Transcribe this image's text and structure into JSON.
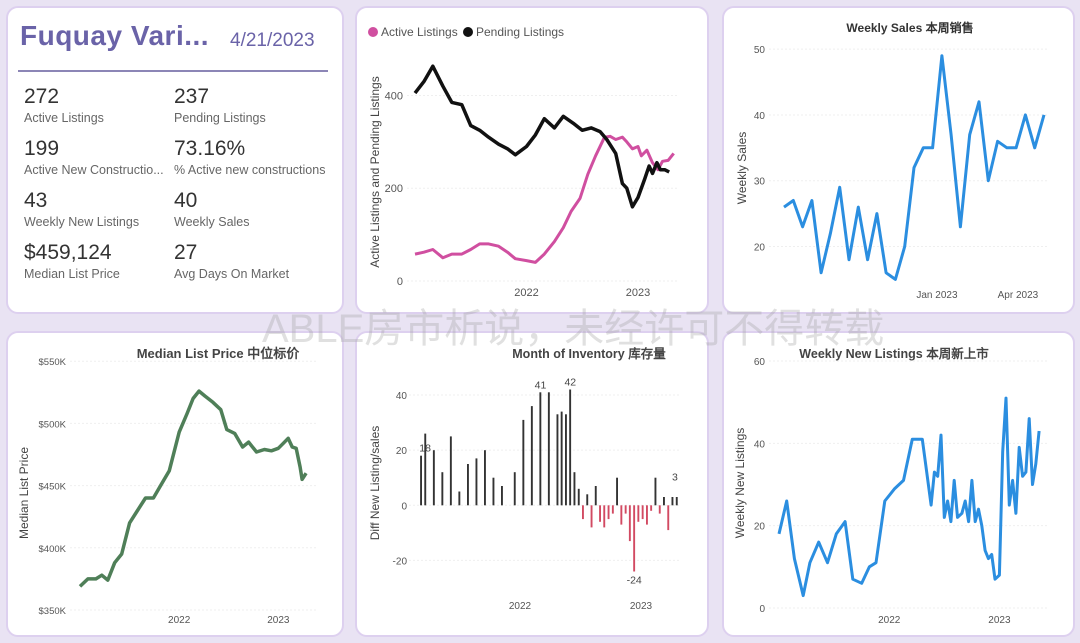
{
  "kpi": {
    "city": "Fuquay Vari...",
    "date": "4/21/2023",
    "items": [
      {
        "value": "272",
        "label": "Active Listings"
      },
      {
        "value": "237",
        "label": "Pending Listings"
      },
      {
        "value": "199",
        "label": "Active New Constructio..."
      },
      {
        "value": "73.16%",
        "label": "% Active new constructions"
      },
      {
        "value": "43",
        "label": "Weekly New Listings"
      },
      {
        "value": "40",
        "label": "Weekly Sales"
      },
      {
        "value": "$459,124",
        "label": "Median List Price"
      },
      {
        "value": "27",
        "label": "Avg Days On Market"
      }
    ]
  },
  "watermark": "ABLE房市析说，未经许可不得转载",
  "colors": {
    "active": "#d04fa0",
    "pending": "#111111",
    "blue": "#2b8ee0",
    "green": "#4f7f58",
    "bar_pos": "#333333",
    "bar_neg": "#d24a62"
  },
  "chart_data": [
    {
      "type": "line",
      "title": "",
      "ylabel": "Active Listings and Pending Listings",
      "xlabel": "",
      "legend": "top-left",
      "x_ticks": [
        "2022",
        "2023"
      ],
      "y_ticks": [
        0,
        200,
        400
      ],
      "ylim": [
        0,
        470
      ],
      "xlim": [
        2021.0,
        2023.35
      ],
      "series": [
        {
          "name": "Active Listings",
          "points": [
            [
              2021.0,
              58
            ],
            [
              2021.08,
              62
            ],
            [
              2021.16,
              68
            ],
            [
              2021.25,
              50
            ],
            [
              2021.33,
              58
            ],
            [
              2021.42,
              58
            ],
            [
              2021.5,
              68
            ],
            [
              2021.58,
              80
            ],
            [
              2021.66,
              80
            ],
            [
              2021.75,
              75
            ],
            [
              2021.83,
              62
            ],
            [
              2021.9,
              48
            ],
            [
              2022.0,
              44
            ],
            [
              2022.08,
              40
            ],
            [
              2022.16,
              58
            ],
            [
              2022.25,
              85
            ],
            [
              2022.33,
              115
            ],
            [
              2022.4,
              150
            ],
            [
              2022.48,
              178
            ],
            [
              2022.55,
              230
            ],
            [
              2022.62,
              270
            ],
            [
              2022.7,
              310
            ],
            [
              2022.75,
              312
            ],
            [
              2022.8,
              305
            ],
            [
              2022.86,
              310
            ],
            [
              2022.9,
              300
            ],
            [
              2022.95,
              285
            ],
            [
              2023.0,
              290
            ],
            [
              2023.03,
              270
            ],
            [
              2023.08,
              282
            ],
            [
              2023.13,
              255
            ],
            [
              2023.18,
              240
            ],
            [
              2023.22,
              258
            ],
            [
              2023.27,
              260
            ],
            [
              2023.32,
              275
            ]
          ]
        },
        {
          "name": "Pending Listings",
          "points": [
            [
              2021.0,
              405
            ],
            [
              2021.08,
              430
            ],
            [
              2021.16,
              463
            ],
            [
              2021.25,
              420
            ],
            [
              2021.33,
              385
            ],
            [
              2021.42,
              380
            ],
            [
              2021.5,
              335
            ],
            [
              2021.58,
              325
            ],
            [
              2021.66,
              310
            ],
            [
              2021.75,
              295
            ],
            [
              2021.83,
              285
            ],
            [
              2021.9,
              272
            ],
            [
              2022.0,
              290
            ],
            [
              2022.08,
              315
            ],
            [
              2022.16,
              350
            ],
            [
              2022.25,
              330
            ],
            [
              2022.33,
              355
            ],
            [
              2022.42,
              340
            ],
            [
              2022.5,
              325
            ],
            [
              2022.58,
              330
            ],
            [
              2022.66,
              322
            ],
            [
              2022.72,
              305
            ],
            [
              2022.8,
              275
            ],
            [
              2022.86,
              210
            ],
            [
              2022.9,
              200
            ],
            [
              2022.95,
              160
            ],
            [
              2023.0,
              180
            ],
            [
              2023.06,
              220
            ],
            [
              2023.1,
              248
            ],
            [
              2023.13,
              232
            ],
            [
              2023.17,
              255
            ],
            [
              2023.2,
              240
            ],
            [
              2023.24,
              240
            ],
            [
              2023.28,
              235
            ]
          ]
        }
      ]
    },
    {
      "type": "line",
      "title": "Weekly Sales 本周销售",
      "ylabel": "Weekly Sales",
      "xlabel": "",
      "x_ticks": [
        "Jan 2023",
        "Apr 2023"
      ],
      "y_ticks": [
        20,
        30,
        40,
        50
      ],
      "ylim": [
        14,
        52
      ],
      "series": [
        {
          "name": "",
          "values": [
            26,
            27,
            23,
            27,
            16,
            22,
            29,
            18,
            26,
            18,
            25,
            16,
            15,
            20,
            32,
            35,
            35,
            49,
            37,
            23,
            37,
            42,
            30,
            36,
            35,
            35,
            40,
            35,
            40
          ]
        }
      ]
    },
    {
      "type": "line",
      "title": "Median List Price  中位标价",
      "ylabel": "Median List Price",
      "xlabel": "",
      "x_ticks": [
        "2022",
        "2023"
      ],
      "y_ticks": [
        "$350K",
        "$400K",
        "$450K",
        "$500K",
        "$550K"
      ],
      "ylim": [
        350000,
        555000
      ],
      "xlim": [
        2021.0,
        2023.4
      ],
      "series": [
        {
          "name": "",
          "points": [
            [
              2021.0,
              369000
            ],
            [
              2021.08,
              375000
            ],
            [
              2021.16,
              375000
            ],
            [
              2021.22,
              378000
            ],
            [
              2021.28,
              374000
            ],
            [
              2021.35,
              388000
            ],
            [
              2021.42,
              395000
            ],
            [
              2021.5,
              420000
            ],
            [
              2021.58,
              430000
            ],
            [
              2021.66,
              440000
            ],
            [
              2021.74,
              440000
            ],
            [
              2021.82,
              451000
            ],
            [
              2021.9,
              462000
            ],
            [
              2022.0,
              493000
            ],
            [
              2022.08,
              508000
            ],
            [
              2022.14,
              520000
            ],
            [
              2022.2,
              526000
            ],
            [
              2022.26,
              522000
            ],
            [
              2022.34,
              517000
            ],
            [
              2022.42,
              511000
            ],
            [
              2022.48,
              495000
            ],
            [
              2022.56,
              492000
            ],
            [
              2022.64,
              481000
            ],
            [
              2022.7,
              485000
            ],
            [
              2022.78,
              477000
            ],
            [
              2022.86,
              479000
            ],
            [
              2022.93,
              478000
            ],
            [
              2023.0,
              480000
            ],
            [
              2023.05,
              484000
            ],
            [
              2023.1,
              488000
            ],
            [
              2023.14,
              481000
            ],
            [
              2023.18,
              480000
            ],
            [
              2023.22,
              465000
            ],
            [
              2023.24,
              455000
            ],
            [
              2023.28,
              460000
            ]
          ]
        }
      ]
    },
    {
      "type": "bar",
      "title": "Month of Inventory 库存量",
      "ylabel": "Diff New Listing/sales",
      "xlabel": "",
      "x_ticks": [
        "2022",
        "2023"
      ],
      "y_ticks": [
        -20,
        0,
        20,
        40
      ],
      "ylim": [
        -30,
        48
      ],
      "data_labels": [
        {
          "value": "18"
        },
        {
          "value": "41"
        },
        {
          "value": "42"
        },
        {
          "value": "-24"
        },
        {
          "value": "3"
        }
      ],
      "series": [
        {
          "name": "",
          "values": [
            18,
            26,
            0,
            20,
            0,
            12,
            0,
            25,
            0,
            5,
            0,
            15,
            0,
            17,
            0,
            20,
            0,
            10,
            0,
            7,
            0,
            0,
            12,
            0,
            31,
            0,
            36,
            0,
            41,
            0,
            41,
            0,
            33,
            34,
            33,
            42,
            12,
            6,
            -5,
            4,
            -8,
            7,
            -6,
            -8,
            -5,
            -3,
            10,
            -7,
            -3,
            -13,
            -24,
            -6,
            -5,
            -7,
            -2,
            10,
            -3,
            3,
            -9,
            3,
            3
          ]
        }
      ]
    },
    {
      "type": "line",
      "title": "Weekly New Listings  本周新上市",
      "ylabel": "Weekly New Listings",
      "xlabel": "",
      "x_ticks": [
        "2022",
        "2023"
      ],
      "y_ticks": [
        0,
        20,
        40,
        60
      ],
      "ylim": [
        0,
        60
      ],
      "xlim": [
        2021.0,
        2023.45
      ],
      "series": [
        {
          "name": "",
          "points": [
            [
              2021.0,
              18
            ],
            [
              2021.07,
              26
            ],
            [
              2021.14,
              12
            ],
            [
              2021.22,
              3
            ],
            [
              2021.28,
              11
            ],
            [
              2021.36,
              16
            ],
            [
              2021.44,
              11
            ],
            [
              2021.52,
              18
            ],
            [
              2021.6,
              21
            ],
            [
              2021.67,
              7
            ],
            [
              2021.75,
              6
            ],
            [
              2021.82,
              10
            ],
            [
              2021.88,
              11
            ],
            [
              2021.96,
              26
            ],
            [
              2022.05,
              29
            ],
            [
              2022.13,
              31
            ],
            [
              2022.21,
              41
            ],
            [
              2022.3,
              41
            ],
            [
              2022.34,
              33
            ],
            [
              2022.38,
              25
            ],
            [
              2022.41,
              33
            ],
            [
              2022.44,
              32
            ],
            [
              2022.47,
              42
            ],
            [
              2022.5,
              22
            ],
            [
              2022.53,
              26
            ],
            [
              2022.56,
              21
            ],
            [
              2022.59,
              31
            ],
            [
              2022.62,
              22
            ],
            [
              2022.66,
              23
            ],
            [
              2022.69,
              26
            ],
            [
              2022.72,
              21
            ],
            [
              2022.75,
              31
            ],
            [
              2022.78,
              21
            ],
            [
              2022.81,
              24
            ],
            [
              2022.84,
              20
            ],
            [
              2022.87,
              14
            ],
            [
              2022.9,
              12
            ],
            [
              2022.93,
              13
            ],
            [
              2022.96,
              7
            ],
            [
              2023.0,
              8
            ],
            [
              2023.03,
              38
            ],
            [
              2023.06,
              51
            ],
            [
              2023.09,
              25
            ],
            [
              2023.12,
              31
            ],
            [
              2023.15,
              23
            ],
            [
              2023.18,
              39
            ],
            [
              2023.21,
              32
            ],
            [
              2023.24,
              33
            ],
            [
              2023.27,
              46
            ],
            [
              2023.3,
              30
            ],
            [
              2023.33,
              35
            ],
            [
              2023.36,
              43
            ]
          ]
        }
      ]
    }
  ]
}
